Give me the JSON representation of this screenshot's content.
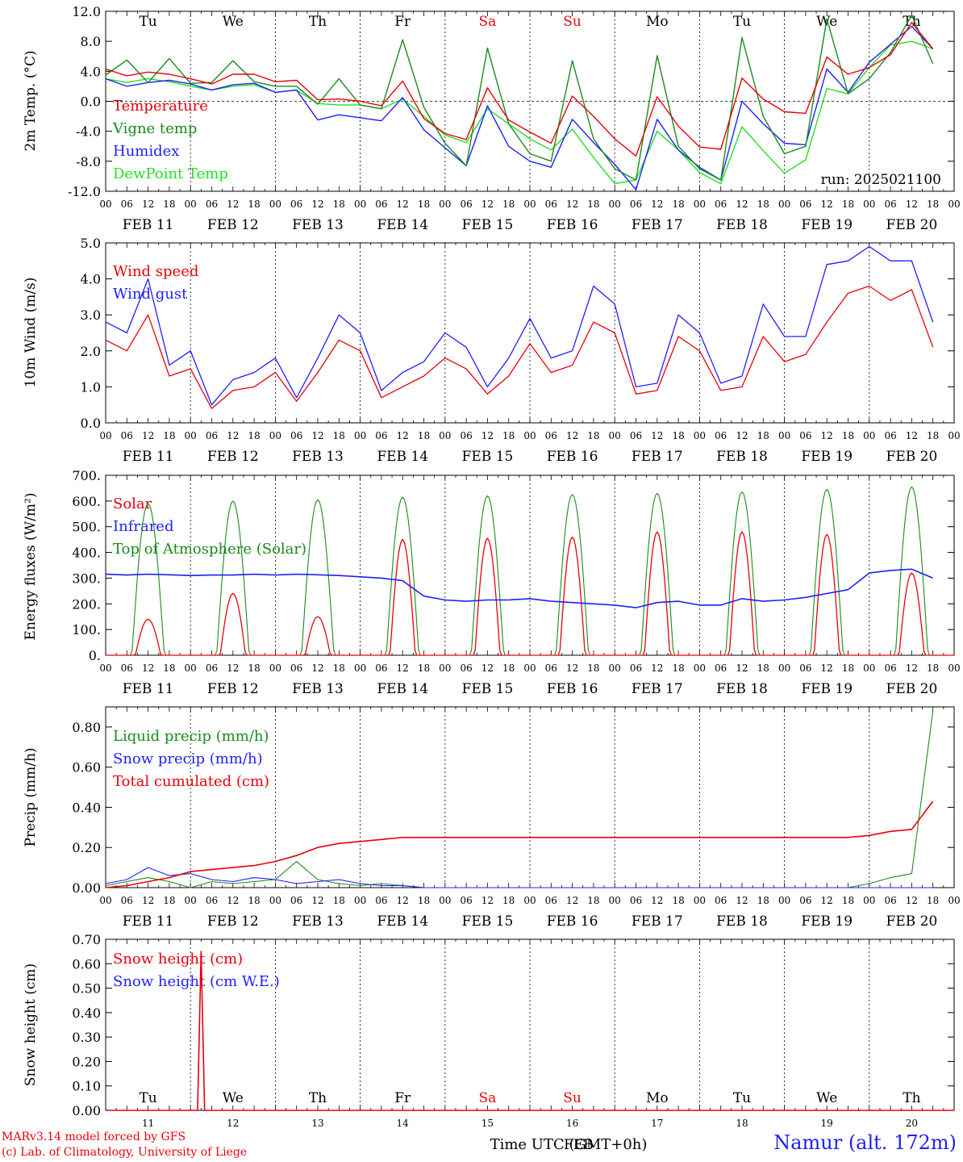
{
  "colors": {
    "red": "#e8000b",
    "green": "#1a8a1a",
    "blue": "#1f1fff",
    "lightgreen": "#22e022",
    "axis": "#000000",
    "weekend": "#e8000b"
  },
  "time_axis": {
    "tick_hours": [
      "00",
      "06",
      "12",
      "18"
    ],
    "last_tick": "00",
    "dates": [
      "FEB 11",
      "FEB 12",
      "FEB 13",
      "FEB 14",
      "FEB 15",
      "FEB 16",
      "FEB 17",
      "FEB 18",
      "FEB 19",
      "FEB 20"
    ],
    "weekdays": [
      "Tu",
      "We",
      "Th",
      "Fr",
      "Sa",
      "Su",
      "Mo",
      "Tu",
      "We",
      "Th"
    ],
    "weekend_days": [
      "Sa",
      "Su"
    ],
    "day_numbers": [
      "11",
      "12",
      "13",
      "14",
      "15",
      "16",
      "17",
      "18",
      "19",
      "20"
    ],
    "xlabel_prefix": "Time UTC (GMT+0h)",
    "xlabel_month": "FEB"
  },
  "footer": {
    "credit_line1": "MARv3.14 model forced by GFS",
    "credit_line2": "(c) Lab. of Climatology, University of Liege",
    "station": "Namur (alt. 172m)"
  },
  "chart_data": [
    {
      "type": "line",
      "ylabel": "2m Temp. (°C)",
      "ylim": [
        -12,
        12
      ],
      "yticks": [
        "12.0",
        "8.0",
        "4.0",
        "0.0",
        "-4.0",
        "-8.0",
        "-12.0"
      ],
      "ytick_values": [
        12,
        8,
        4,
        0,
        -4,
        -8,
        -12
      ],
      "zero_line": true,
      "annotation": "run: 2025021100",
      "x_unit": "hours since 2025-02-11 00 UTC, 6-hourly",
      "series": [
        {
          "name": "Temperature",
          "color": "red",
          "values": [
            4.3,
            3.4,
            3.9,
            3.6,
            3.0,
            2.3,
            3.6,
            3.6,
            2.6,
            2.8,
            0.2,
            0.3,
            0.0,
            -0.6,
            2.7,
            -2.3,
            -4.3,
            -5.1,
            1.8,
            -2.5,
            -4.1,
            -5.6,
            0.7,
            -2.0,
            -5.0,
            -7.3,
            0.6,
            -3.3,
            -6.1,
            -6.4,
            3.1,
            0.3,
            -1.4,
            -1.6,
            5.9,
            3.6,
            4.5,
            6.2,
            10.5,
            7.0
          ]
        },
        {
          "name": "Vigne temp",
          "color": "green",
          "values": [
            3.5,
            5.5,
            2.5,
            5.7,
            2.4,
            2.5,
            5.4,
            2.6,
            2.0,
            2.0,
            -0.4,
            3.0,
            -0.5,
            -1.0,
            8.2,
            -0.8,
            -5.6,
            -8.6,
            7.1,
            -3.0,
            -7.0,
            -8.0,
            5.4,
            -5.0,
            -9.0,
            -10.5,
            6.1,
            -6.0,
            -9.0,
            -10.5,
            8.5,
            -2.0,
            -7.0,
            -6.0,
            11.0,
            1.0,
            3.0,
            6.5,
            11.5,
            5.0
          ]
        },
        {
          "name": "Humidex",
          "color": "blue",
          "values": [
            3.0,
            2.0,
            2.5,
            2.8,
            2.3,
            1.5,
            2.2,
            2.4,
            1.2,
            1.5,
            -2.5,
            -1.8,
            -2.2,
            -2.6,
            0.5,
            -3.8,
            -6.2,
            -8.6,
            -0.6,
            -6.0,
            -8.0,
            -8.8,
            -2.4,
            -5.5,
            -8.4,
            -11.8,
            -2.4,
            -6.5,
            -8.8,
            -10.5,
            0.0,
            -3.0,
            -5.6,
            -5.8,
            4.3,
            1.2,
            5.2,
            7.6,
            10.0,
            7.0
          ]
        },
        {
          "name": "DewPoint Temp",
          "color": "lightgreen",
          "values": [
            3.0,
            2.5,
            3.0,
            2.6,
            2.0,
            1.5,
            2.0,
            2.2,
            1.2,
            1.5,
            -0.3,
            -0.5,
            -0.5,
            -1.0,
            0.3,
            -2.0,
            -4.5,
            -5.5,
            -1.0,
            -3.0,
            -5.0,
            -6.5,
            -3.7,
            -7.5,
            -11.0,
            -10.5,
            -4.0,
            -6.5,
            -9.5,
            -11.0,
            -3.4,
            -6.6,
            -9.6,
            -7.8,
            1.7,
            1.0,
            4.5,
            7.5,
            8.0,
            7.0
          ]
        }
      ]
    },
    {
      "type": "line",
      "ylabel": "10m Wind (m/s)",
      "ylim": [
        0,
        5
      ],
      "yticks": [
        "5.0",
        "4.0",
        "3.0",
        "2.0",
        "1.0",
        "0.0"
      ],
      "ytick_values": [
        5,
        4,
        3,
        2,
        1,
        0
      ],
      "x_unit": "hours since 2025-02-11 00 UTC, 6-hourly",
      "series": [
        {
          "name": "Wind speed",
          "color": "red",
          "values": [
            2.3,
            2.0,
            3.0,
            1.3,
            1.5,
            0.4,
            0.9,
            1.0,
            1.4,
            0.6,
            1.4,
            2.3,
            2.0,
            0.7,
            1.0,
            1.3,
            1.8,
            1.5,
            0.8,
            1.3,
            2.2,
            1.4,
            1.6,
            2.8,
            2.5,
            0.8,
            0.9,
            2.4,
            2.0,
            0.9,
            1.0,
            2.4,
            1.7,
            1.9,
            2.8,
            3.6,
            3.8,
            3.4,
            3.7,
            2.1
          ]
        },
        {
          "name": "Wind gust",
          "color": "blue",
          "values": [
            2.8,
            2.5,
            4.0,
            1.6,
            2.0,
            0.5,
            1.2,
            1.4,
            1.8,
            0.7,
            1.8,
            3.0,
            2.5,
            0.9,
            1.4,
            1.7,
            2.5,
            2.1,
            1.0,
            1.8,
            2.9,
            1.8,
            2.0,
            3.8,
            3.3,
            1.0,
            1.1,
            3.0,
            2.5,
            1.1,
            1.3,
            3.3,
            2.4,
            2.4,
            4.4,
            4.5,
            4.9,
            4.5,
            4.5,
            2.8
          ]
        }
      ]
    },
    {
      "type": "line",
      "ylabel": "Energy fluxes (W/m²)",
      "ylim": [
        0,
        700
      ],
      "yticks": [
        "700.",
        "600.",
        "500.",
        "400.",
        "300.",
        "200.",
        "100.",
        "0."
      ],
      "ytick_values": [
        700,
        600,
        500,
        400,
        300,
        200,
        100,
        0
      ],
      "x_unit": "hours since 2025-02-11 00 UTC, 6-hourly",
      "series": [
        {
          "name": "Solar",
          "color": "red",
          "daily_peaks": [
            140,
            240,
            150,
            450,
            455,
            460,
            480,
            480,
            470,
            320
          ]
        },
        {
          "name": "Infrared",
          "color": "blue",
          "values": [
            315,
            312,
            315,
            313,
            310,
            312,
            312,
            315,
            312,
            315,
            313,
            310,
            305,
            300,
            290,
            230,
            215,
            210,
            215,
            215,
            220,
            210,
            205,
            200,
            195,
            185,
            205,
            210,
            195,
            195,
            220,
            210,
            215,
            225,
            240,
            255,
            320,
            330,
            335,
            300
          ]
        },
        {
          "name": "Top of Atmosphere (Solar)",
          "color": "green",
          "daily_peaks": [
            590,
            600,
            605,
            615,
            620,
            625,
            630,
            635,
            645,
            655
          ]
        }
      ]
    },
    {
      "type": "line",
      "ylabel": "Precip (mm/h)",
      "ylim": [
        0,
        0.9
      ],
      "yticks": [
        "0.80",
        "0.60",
        "0.40",
        "0.20",
        "0.00"
      ],
      "ytick_values": [
        0.8,
        0.6,
        0.4,
        0.2,
        0.0
      ],
      "x_unit": "hours since 2025-02-11 00 UTC, 6-hourly",
      "series": [
        {
          "name": "Liquid precip (mm/h)",
          "color": "green",
          "values": [
            0.01,
            0.03,
            0.05,
            0.03,
            0.0,
            0.03,
            0.02,
            0.03,
            0.04,
            0.13,
            0.04,
            0.02,
            0.01,
            0.02,
            0.01,
            0.0,
            0.0,
            0.0,
            0.0,
            0.0,
            0.0,
            0.0,
            0.0,
            0.0,
            0.0,
            0.0,
            0.0,
            0.0,
            0.0,
            0.0,
            0.0,
            0.0,
            0.0,
            0.0,
            0.0,
            0.0,
            0.02,
            0.05,
            0.07,
            0.88
          ]
        },
        {
          "name": "Snow precip (mm/h)",
          "color": "blue",
          "values": [
            0.02,
            0.04,
            0.1,
            0.06,
            0.07,
            0.04,
            0.03,
            0.05,
            0.04,
            0.02,
            0.03,
            0.04,
            0.02,
            0.01,
            0.01,
            0.0,
            0.0,
            0.0,
            0.0,
            0.0,
            0.0,
            0.0,
            0.0,
            0.0,
            0.0,
            0.0,
            0.0,
            0.0,
            0.0,
            0.0,
            0.0,
            0.0,
            0.0,
            0.0,
            0.0,
            0.0,
            0.0,
            0.0,
            0.0,
            0.0
          ]
        },
        {
          "name": "Total cumulated (cm)",
          "color": "red",
          "values": [
            0.0,
            0.01,
            0.03,
            0.05,
            0.08,
            0.09,
            0.1,
            0.11,
            0.13,
            0.16,
            0.2,
            0.22,
            0.23,
            0.24,
            0.25,
            0.25,
            0.25,
            0.25,
            0.25,
            0.25,
            0.25,
            0.25,
            0.25,
            0.25,
            0.25,
            0.25,
            0.25,
            0.25,
            0.25,
            0.25,
            0.25,
            0.25,
            0.25,
            0.25,
            0.25,
            0.25,
            0.26,
            0.28,
            0.29,
            0.43
          ]
        }
      ]
    },
    {
      "type": "line",
      "ylabel": "Snow height (cm)",
      "ylim": [
        0,
        0.7
      ],
      "yticks": [
        "0.70",
        "0.60",
        "0.50",
        "0.40",
        "0.30",
        "0.20",
        "0.10",
        "0.00"
      ],
      "ytick_values": [
        0.7,
        0.6,
        0.5,
        0.4,
        0.3,
        0.2,
        0.1,
        0.0
      ],
      "x_unit": "hours since 2025-02-11 00 UTC",
      "series": [
        {
          "name": "Snow height (cm)",
          "color": "red",
          "spike_hour": 27,
          "spike_value": 0.65
        },
        {
          "name": "Snow height (cm W.E.)",
          "color": "blue",
          "values": []
        }
      ]
    }
  ]
}
